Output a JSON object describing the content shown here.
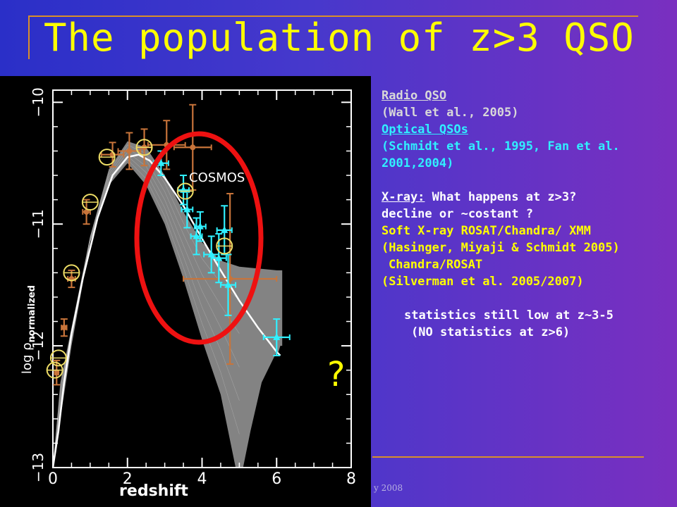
{
  "title": "The population of z>3 QSO",
  "footer": "y 2008",
  "right_text": {
    "radio_heading": "Radio QSO",
    "radio_ref": "(Wall et al., 2005)",
    "optical_heading": "Optical QSOs",
    "optical_ref_1": "(Schmidt et al., 1995, Fan et al.",
    "optical_ref_2": "2001,2004)",
    "xray_heading": "X-ray:",
    "xray_question": " What happens at z>3?",
    "xray_line2": "decline or ~costant ?",
    "soft_xray": "Soft X-ray ROSAT/Chandra/ XMM",
    "hasinger_ref": "(Hasinger, Miyaji & Schmidt 2005)",
    "chandra_rosat": "Chandra/ROSAT",
    "silverman_ref": "(Silverman et al. 2005/2007)",
    "stats_low": "statistics still low at z~3-5",
    "stats_none": "(NO statistics at z>6)"
  },
  "colors": {
    "title": "#ffff00",
    "radio": "#d8d8d8",
    "optical": "#30f0ff",
    "soft_xray": "#ffff00",
    "highlight_circle": "#ee1111",
    "optical_points": "#c8743a",
    "xray_points": "#30f0ff",
    "cosmos_markers": "#eedd66",
    "model_band": "#9a9a9a"
  },
  "chart_data": {
    "type": "scatter",
    "xlabel": "redshift",
    "ylabel_main": "log ρ",
    "ylabel_sub": "normalized",
    "xlim": [
      0,
      8
    ],
    "ylim": [
      -13,
      -9.9
    ],
    "x_ticks": [
      "0",
      "2",
      "4",
      "6",
      "8"
    ],
    "y_ticks": [
      "−13",
      "−12",
      "−11",
      "−10"
    ],
    "annotations": {
      "cosmos": "COSMOS",
      "question": "?"
    },
    "model_band": {
      "upper": [
        [
          0.0,
          -13.0
        ],
        [
          0.2,
          -12.3
        ],
        [
          0.5,
          -11.85
        ],
        [
          1.0,
          -11.1
        ],
        [
          1.5,
          -10.55
        ],
        [
          2.0,
          -10.32
        ],
        [
          2.5,
          -10.37
        ],
        [
          3.0,
          -10.6
        ],
        [
          3.5,
          -10.9
        ],
        [
          4.0,
          -11.15
        ],
        [
          4.5,
          -11.3
        ],
        [
          5.0,
          -11.35
        ],
        [
          6.0,
          -11.38
        ],
        [
          6.15,
          -11.38
        ]
      ],
      "lower": [
        [
          6.15,
          -12.0
        ],
        [
          6.1,
          -12.0
        ],
        [
          6.05,
          -12.05
        ],
        [
          6.0,
          -12.05
        ],
        [
          5.6,
          -12.3
        ],
        [
          5.3,
          -12.7
        ],
        [
          5.1,
          -13.0
        ],
        [
          4.9,
          -13.0
        ],
        [
          4.5,
          -12.4
        ],
        [
          4.0,
          -11.95
        ],
        [
          3.5,
          -11.45
        ],
        [
          3.0,
          -11.0
        ],
        [
          2.5,
          -10.68
        ],
        [
          2.0,
          -10.5
        ],
        [
          1.5,
          -10.68
        ],
        [
          1.0,
          -11.15
        ],
        [
          0.5,
          -12.0
        ],
        [
          0.2,
          -12.6
        ],
        [
          0.0,
          -13.0
        ]
      ]
    },
    "model_curve": [
      [
        0.0,
        -13.0
      ],
      [
        0.15,
        -12.7
      ],
      [
        0.3,
        -12.3
      ],
      [
        0.5,
        -11.9
      ],
      [
        0.8,
        -11.45
      ],
      [
        1.2,
        -10.95
      ],
      [
        1.6,
        -10.6
      ],
      [
        2.0,
        -10.45
      ],
      [
        2.3,
        -10.43
      ],
      [
        2.6,
        -10.48
      ],
      [
        3.0,
        -10.62
      ],
      [
        3.5,
        -10.85
      ],
      [
        4.0,
        -11.12
      ],
      [
        4.5,
        -11.38
      ],
      [
        5.0,
        -11.63
      ],
      [
        5.5,
        -11.85
      ],
      [
        6.0,
        -12.05
      ],
      [
        6.1,
        -12.08
      ]
    ],
    "series": [
      {
        "name": "Optical QSOs",
        "points": [
          {
            "x": 0.1,
            "y": -12.22,
            "xerr": 0.05,
            "yerr": 0.1
          },
          {
            "x": 0.3,
            "y": -11.85,
            "xerr": 0.07,
            "yerr": 0.07
          },
          {
            "x": 0.5,
            "y": -11.45,
            "xerr": 0.1,
            "yerr": 0.07
          },
          {
            "x": 0.9,
            "y": -10.9,
            "xerr": 0.1,
            "yerr": 0.1
          },
          {
            "x": 1.6,
            "y": -10.43,
            "xerr": 0.3,
            "yerr": 0.1
          },
          {
            "x": 2.05,
            "y": -10.4,
            "xerr": 0.3,
            "yerr": 0.15
          },
          {
            "x": 2.45,
            "y": -10.37,
            "xerr": 0.2,
            "yerr": 0.15
          },
          {
            "x": 3.05,
            "y": -10.35,
            "xerr": 0.5,
            "yerr": 0.2
          },
          {
            "x": 3.75,
            "y": -10.37,
            "xerr": 0.5,
            "yerr": 0.35
          },
          {
            "x": 4.75,
            "y": -11.45,
            "xerr": 1.25,
            "yerr": 0.7
          }
        ]
      },
      {
        "name": "X-ray",
        "points": [
          {
            "x": 2.9,
            "y": -10.5,
            "xerr": 0.2,
            "yerr": 0.1
          },
          {
            "x": 3.5,
            "y": -10.72,
            "xerr": 0.15,
            "yerr": 0.12
          },
          {
            "x": 3.6,
            "y": -10.88,
            "xerr": 0.15,
            "yerr": 0.15
          },
          {
            "x": 3.85,
            "y": -11.1,
            "xerr": 0.15,
            "yerr": 0.15
          },
          {
            "x": 3.95,
            "y": -11.02,
            "xerr": 0.15,
            "yerr": 0.12
          },
          {
            "x": 4.25,
            "y": -11.25,
            "xerr": 0.2,
            "yerr": 0.15
          },
          {
            "x": 4.45,
            "y": -11.28,
            "xerr": 0.2,
            "yerr": 0.2
          },
          {
            "x": 4.6,
            "y": -11.05,
            "xerr": 0.2,
            "yerr": 0.2
          },
          {
            "x": 4.7,
            "y": -11.5,
            "xerr": 0.2,
            "yerr": 0.25
          },
          {
            "x": 6.0,
            "y": -11.93,
            "xerr": 0.35,
            "yerr": 0.15
          }
        ]
      },
      {
        "name": "COSMOS",
        "points": [
          {
            "x": 0.05,
            "y": -12.2
          },
          {
            "x": 0.15,
            "y": -12.1
          },
          {
            "x": 0.5,
            "y": -11.4
          },
          {
            "x": 1.0,
            "y": -10.82
          },
          {
            "x": 1.45,
            "y": -10.45
          },
          {
            "x": 2.45,
            "y": -10.37
          },
          {
            "x": 3.55,
            "y": -10.73
          },
          {
            "x": 4.6,
            "y": -11.18
          }
        ]
      }
    ]
  }
}
